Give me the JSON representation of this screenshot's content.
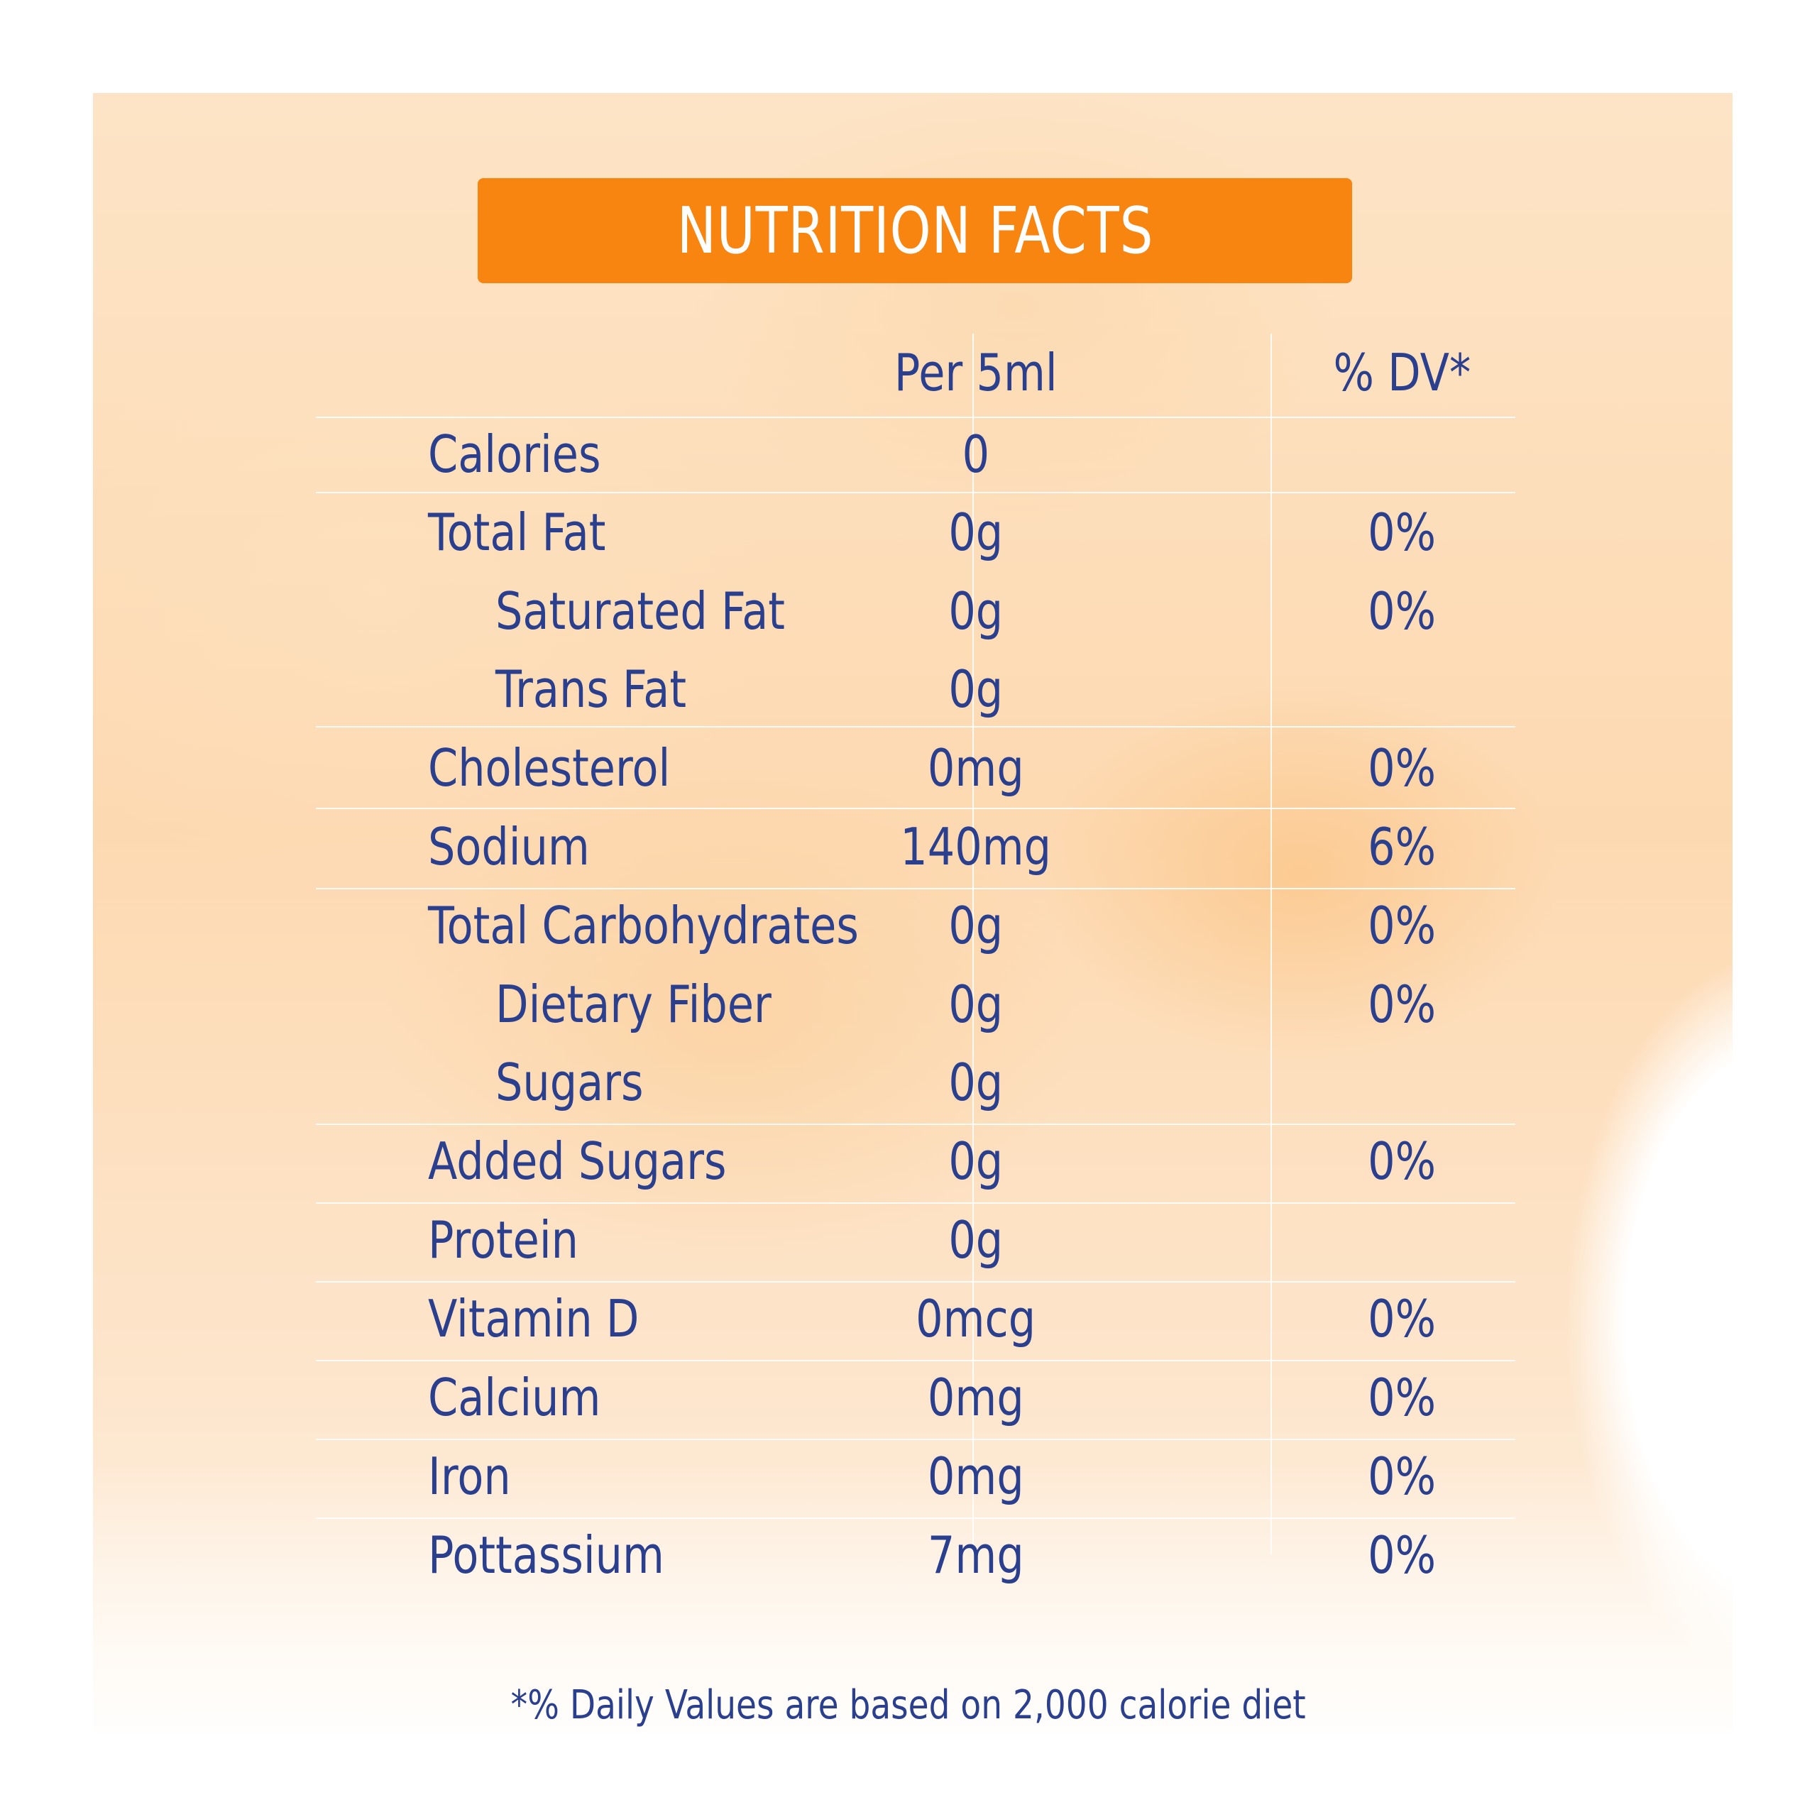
{
  "title": "NUTRITION FACTS",
  "header": {
    "per_label": "Per 5ml",
    "dv_label": "% DV*"
  },
  "rows": [
    {
      "name": "Calories",
      "per": "0",
      "dv": ""
    },
    {
      "name": "Total Fat",
      "per": "0g",
      "dv": "0%"
    },
    {
      "name": "Saturated Fat",
      "per": "0g",
      "dv": "0%"
    },
    {
      "name": "Trans Fat",
      "per": "0g",
      "dv": ""
    },
    {
      "name": "Cholesterol",
      "per": "0mg",
      "dv": "0%"
    },
    {
      "name": "Sodium",
      "per": "140mg",
      "dv": "6%"
    },
    {
      "name": "Total Carbohydrates",
      "per": "0g",
      "dv": "0%"
    },
    {
      "name": "Dietary Fiber",
      "per": "0g",
      "dv": "0%"
    },
    {
      "name": "Sugars",
      "per": "0g",
      "dv": ""
    },
    {
      "name": "Added Sugars",
      "per": "0g",
      "dv": "0%"
    },
    {
      "name": "Protein",
      "per": "0g",
      "dv": ""
    },
    {
      "name": "Vitamin D",
      "per": "0mcg",
      "dv": "0%"
    },
    {
      "name": "Calcium",
      "per": "0mg",
      "dv": "0%"
    },
    {
      "name": "Iron",
      "per": "0mg",
      "dv": "0%"
    },
    {
      "name": "Pottassium",
      "per": "7mg",
      "dv": "0%"
    }
  ],
  "footnote": "*% Daily Values are based on 2,000 calorie diet",
  "colors": {
    "title_bar": "#f8850f",
    "text": "#2b3f8f",
    "background_wash": "#fdd9b1"
  }
}
